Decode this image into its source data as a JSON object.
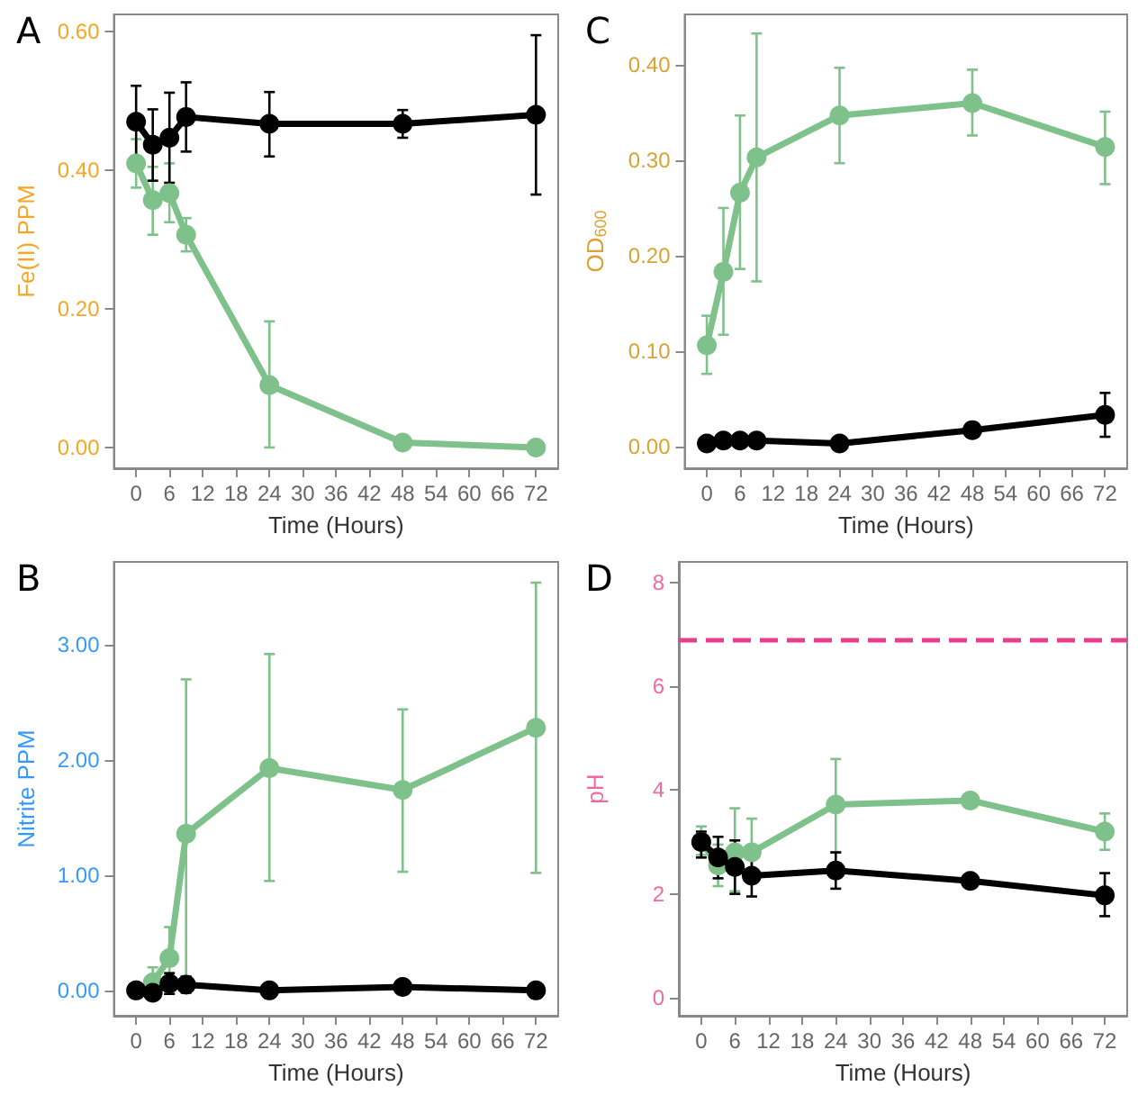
{
  "chart_data": [
    {
      "type": "line",
      "title": "A",
      "xlabel": "Time (Hours)",
      "ylabel": "Fe(II) PPM",
      "x": [
        0,
        3,
        6,
        9,
        24,
        48,
        72
      ],
      "xlim": [
        -4,
        76
      ],
      "xticks": [
        0,
        6,
        12,
        18,
        24,
        30,
        36,
        42,
        48,
        54,
        60,
        66,
        72
      ],
      "ylim": [
        -0.03,
        0.625
      ],
      "yticks": [
        {
          "value": 0,
          "label": "0.00"
        },
        {
          "value": 0.2,
          "label": "0.20"
        },
        {
          "value": 0.4,
          "label": "0.40"
        },
        {
          "value": 0.6,
          "label": "0.60"
        }
      ],
      "grid": false,
      "marker": "circle",
      "line_style": "solid",
      "series": [
        {
          "color": "#7fc18a",
          "values": [
            0.41,
            0.357,
            0.367,
            0.307,
            0.09,
            0.007,
            0.0
          ],
          "errors": [
            [
              0.375,
              0.445
            ],
            [
              0.307,
              0.405
            ],
            [
              0.325,
              0.41
            ],
            [
              0.283,
              0.331
            ],
            [
              0.0,
              0.182
            ],
            null,
            null
          ]
        },
        {
          "color": "#000000",
          "values": [
            0.47,
            0.437,
            0.447,
            0.477,
            0.467,
            0.467,
            0.48
          ],
          "errors": [
            [
              0.42,
              0.522
            ],
            [
              0.385,
              0.488
            ],
            [
              0.382,
              0.512
            ],
            [
              0.427,
              0.527
            ],
            [
              0.42,
              0.513
            ],
            [
              0.447,
              0.487
            ],
            [
              0.365,
              0.595
            ]
          ]
        }
      ]
    },
    {
      "type": "line",
      "title": "C",
      "xlabel": "Time (Hours)",
      "ylabel": "OD$_{600}$",
      "x": [
        0,
        3,
        6,
        9,
        24,
        48,
        72
      ],
      "xlim": [
        -4,
        76
      ],
      "xticks": [
        0,
        6,
        12,
        18,
        24,
        30,
        36,
        42,
        48,
        54,
        60,
        66,
        72
      ],
      "ylim": [
        -0.023,
        0.453
      ],
      "yticks": [
        {
          "value": 0,
          "label": "0.00"
        },
        {
          "value": 0.1,
          "label": "0.10"
        },
        {
          "value": 0.2,
          "label": "0.20"
        },
        {
          "value": 0.3,
          "label": "0.30"
        },
        {
          "value": 0.4,
          "label": "0.40"
        }
      ],
      "grid": false,
      "marker": "circle",
      "line_style": "solid",
      "series": [
        {
          "color": "#7fc18a",
          "values": [
            0.106,
            0.183,
            0.266,
            0.303,
            0.347,
            0.36,
            0.314
          ],
          "errors": [
            [
              0.076,
              0.137
            ],
            [
              0.117,
              0.25
            ],
            [
              0.186,
              0.347
            ],
            [
              0.173,
              0.433
            ],
            [
              0.297,
              0.397
            ],
            [
              0.326,
              0.395
            ],
            [
              0.275,
              0.351
            ]
          ]
        },
        {
          "color": "#000000",
          "values": [
            0.003,
            0.006,
            0.006,
            0.006,
            0.003,
            0.017,
            0.033
          ],
          "errors": [
            null,
            null,
            null,
            null,
            null,
            null,
            [
              0.01,
              0.056
            ]
          ]
        }
      ]
    },
    {
      "type": "line",
      "title": "B",
      "xlabel": "Time (Hours)",
      "ylabel": "Nitrite PPM",
      "x": [
        0,
        3,
        6,
        9,
        24,
        48,
        72
      ],
      "xlim": [
        -4,
        76
      ],
      "xticks": [
        0,
        6,
        12,
        18,
        24,
        30,
        36,
        42,
        48,
        54,
        60,
        66,
        72
      ],
      "ylim": [
        -0.22,
        3.72
      ],
      "yticks": [
        {
          "value": 0,
          "label": "0.00"
        },
        {
          "value": 1,
          "label": "1.00"
        },
        {
          "value": 2,
          "label": "2.00"
        },
        {
          "value": 3,
          "label": "3.00"
        }
      ],
      "grid": false,
      "marker": "circle",
      "line_style": "solid",
      "series": [
        {
          "color": "#7fc18a",
          "values": [
            0.0,
            0.07,
            0.28,
            1.36,
            1.93,
            1.74,
            2.28
          ],
          "errors": [
            null,
            [
              0.0,
              0.2
            ],
            [
              0.02,
              0.55
            ],
            [
              0.02,
              2.7
            ],
            [
              0.95,
              2.92
            ],
            [
              1.03,
              2.44
            ],
            [
              1.02,
              3.54
            ]
          ]
        },
        {
          "color": "#000000",
          "values": [
            0.0,
            -0.02,
            0.06,
            0.05,
            0.0,
            0.03,
            0.0
          ],
          "errors": [
            null,
            null,
            [
              -0.03,
              0.15
            ],
            [
              -0.02,
              0.12
            ],
            null,
            null,
            null
          ]
        }
      ]
    },
    {
      "type": "line",
      "title": "D",
      "xlabel": "Time (Hours)",
      "ylabel": "pH",
      "x": [
        0,
        3,
        6,
        9,
        24,
        48,
        72
      ],
      "xlim": [
        -4,
        76
      ],
      "xticks": [
        0,
        6,
        12,
        18,
        24,
        30,
        36,
        42,
        48,
        54,
        60,
        66,
        72
      ],
      "ylim": [
        -0.35,
        8.4
      ],
      "yticks": [
        0,
        2,
        4,
        6,
        8
      ],
      "grid": false,
      "marker": "circle",
      "line_style": "solid",
      "ref_lines": [
        {
          "axis": "y",
          "value": 6.9,
          "color": "#e83e8c",
          "line_style": "dashed"
        }
      ],
      "series": [
        {
          "color": "#7fc18a",
          "values": [
            3.0,
            2.55,
            2.8,
            2.8,
            3.72,
            3.8,
            3.2
          ],
          "errors": [
            [
              2.75,
              3.3
            ],
            [
              2.15,
              2.95
            ],
            [
              2.05,
              3.65
            ],
            [
              2.3,
              3.45
            ],
            [
              2.8,
              4.6
            ],
            null,
            [
              2.85,
              3.55
            ]
          ]
        },
        {
          "color": "#000000",
          "values": [
            3.0,
            2.7,
            2.52,
            2.35,
            2.45,
            2.25,
            1.97
          ],
          "errors": [
            [
              2.7,
              3.2
            ],
            [
              2.3,
              3.1
            ],
            [
              2.0,
              3.03
            ],
            [
              1.95,
              2.75
            ],
            [
              2.1,
              2.8
            ],
            null,
            [
              1.57,
              2.4
            ]
          ]
        }
      ]
    }
  ]
}
